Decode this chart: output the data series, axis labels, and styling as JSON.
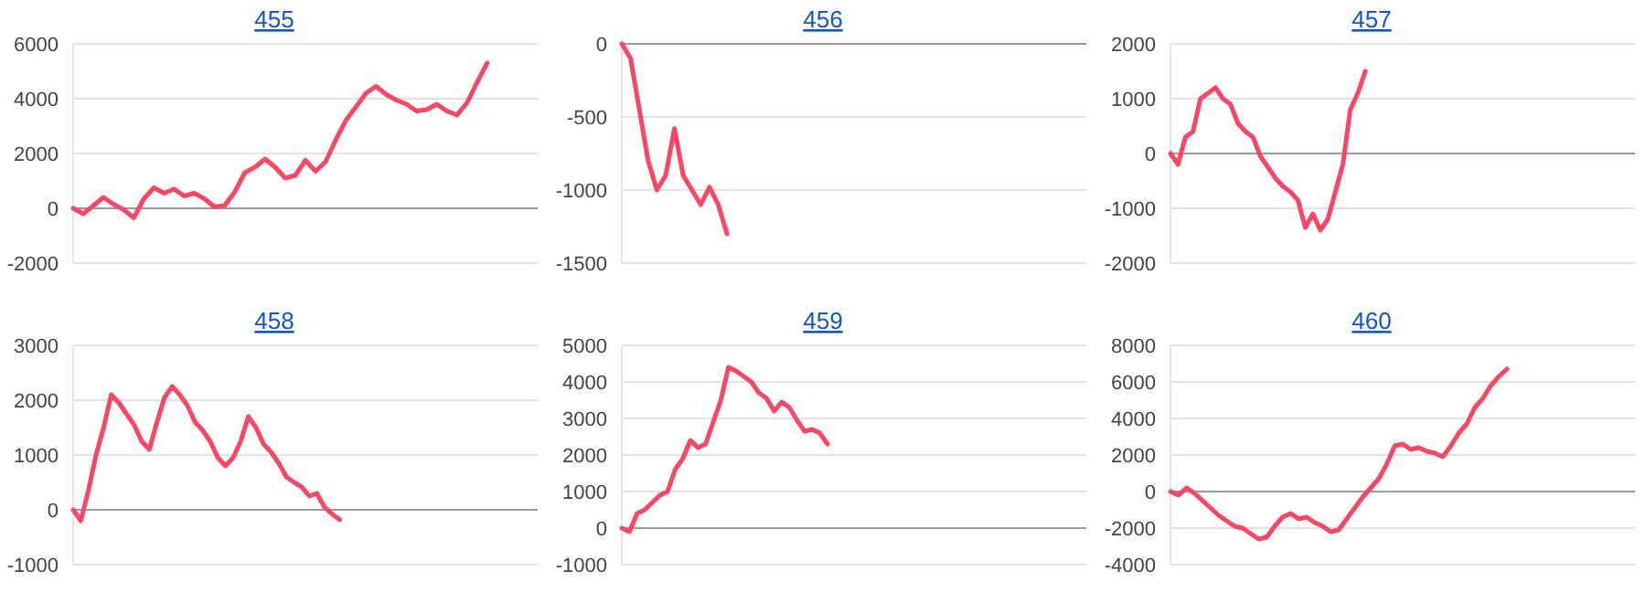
{
  "chart_data": [
    {
      "type": "line",
      "title": "455",
      "grid": "y",
      "tick_labels": "y",
      "ylim": [
        -2000,
        6000
      ],
      "yticks": [
        -2000,
        0,
        2000,
        4000,
        6000
      ],
      "categories": [
        null,
        null,
        null,
        null,
        null,
        null,
        null,
        null,
        null,
        null,
        null,
        null,
        null,
        null,
        null,
        null,
        null,
        null,
        null,
        null,
        null,
        null,
        null,
        null,
        null,
        null,
        null,
        null,
        null,
        null,
        null,
        null,
        null,
        null,
        null,
        null,
        null,
        null,
        null,
        null,
        null,
        null,
        null,
        null,
        null,
        null,
        null
      ],
      "series": [
        {
          "color": "#fa4564",
          "values": [
            0,
            -200,
            100,
            400,
            150,
            -50,
            -350,
            350,
            750,
            550,
            700,
            450,
            550,
            350,
            50,
            100,
            600,
            1300,
            1500,
            1800,
            1500,
            1100,
            1200,
            1750,
            1350,
            1700,
            2500,
            3200,
            3700,
            4200,
            4450,
            4150,
            3950,
            3800,
            3550,
            3600,
            3800,
            3550,
            3400,
            3850,
            4600,
            5300,
            null,
            null,
            null,
            null,
            null
          ]
        }
      ]
    },
    {
      "type": "line",
      "title": "456",
      "grid": "y",
      "tick_labels": "y",
      "ylim": [
        -1500,
        0
      ],
      "yticks": [
        -1500,
        -1000,
        -500,
        0
      ],
      "categories": [
        null,
        null,
        null,
        null,
        null,
        null,
        null,
        null,
        null,
        null,
        null,
        null,
        null,
        null,
        null,
        null,
        null,
        null,
        null,
        null,
        null,
        null,
        null,
        null,
        null,
        null,
        null,
        null,
        null,
        null,
        null,
        null,
        null,
        null,
        null,
        null,
        null,
        null,
        null,
        null,
        null,
        null,
        null,
        null,
        null,
        null,
        null,
        null,
        null,
        null,
        null,
        null,
        null,
        null
      ],
      "series": [
        {
          "color": "#fa4564",
          "values": [
            0,
            -100,
            -450,
            -800,
            -1000,
            -900,
            -580,
            -900,
            -1000,
            -1100,
            -980,
            -1100,
            -1300,
            null,
            null,
            null,
            null,
            null,
            null,
            null,
            null,
            null,
            null,
            null,
            null,
            null,
            null,
            null,
            null,
            null,
            null,
            null,
            null,
            null,
            null,
            null,
            null,
            null,
            null,
            null,
            null,
            null,
            null,
            null,
            null,
            null,
            null,
            null,
            null,
            null,
            null,
            null,
            null,
            null
          ]
        }
      ]
    },
    {
      "type": "line",
      "title": "457",
      "grid": "y",
      "tick_labels": "y",
      "ylim": [
        -2000,
        2000
      ],
      "yticks": [
        -2000,
        -1000,
        0,
        1000,
        2000
      ],
      "categories": [
        null,
        null,
        null,
        null,
        null,
        null,
        null,
        null,
        null,
        null,
        null,
        null,
        null,
        null,
        null,
        null,
        null,
        null,
        null,
        null,
        null,
        null,
        null,
        null,
        null,
        null,
        null,
        null,
        null,
        null,
        null,
        null,
        null,
        null,
        null,
        null,
        null,
        null,
        null,
        null,
        null,
        null,
        null,
        null,
        null,
        null,
        null,
        null,
        null,
        null,
        null,
        null,
        null,
        null,
        null,
        null,
        null,
        null,
        null,
        null,
        null,
        null,
        null
      ],
      "series": [
        {
          "color": "#fa4564",
          "values": [
            0,
            -200,
            300,
            400,
            1000,
            1100,
            1200,
            1000,
            900,
            550,
            400,
            300,
            -50,
            -250,
            -450,
            -600,
            -700,
            -850,
            -1350,
            -1100,
            -1400,
            -1200,
            -700,
            -200,
            800,
            1100,
            1500,
            null,
            null,
            null,
            null,
            null,
            null,
            null,
            null,
            null,
            null,
            null,
            null,
            null,
            null,
            null,
            null,
            null,
            null,
            null,
            null,
            null,
            null,
            null,
            null,
            null,
            null,
            null,
            null,
            null,
            null,
            null,
            null,
            null,
            null,
            null,
            null
          ]
        }
      ]
    },
    {
      "type": "line",
      "title": "458",
      "grid": "y",
      "tick_labels": "y",
      "ylim": [
        -1000,
        3000
      ],
      "yticks": [
        -1000,
        0,
        1000,
        2000,
        3000
      ],
      "categories": [
        null,
        null,
        null,
        null,
        null,
        null,
        null,
        null,
        null,
        null,
        null,
        null,
        null,
        null,
        null,
        null,
        null,
        null,
        null,
        null,
        null,
        null,
        null,
        null,
        null,
        null,
        null,
        null,
        null,
        null,
        null,
        null,
        null,
        null,
        null,
        null,
        null,
        null,
        null,
        null,
        null,
        null,
        null,
        null,
        null,
        null,
        null,
        null,
        null,
        null,
        null,
        null,
        null,
        null,
        null,
        null,
        null,
        null,
        null,
        null,
        null,
        null
      ],
      "series": [
        {
          "color": "#fa4564",
          "values": [
            0,
            -200,
            350,
            1000,
            1500,
            2100,
            1950,
            1750,
            1550,
            1250,
            1100,
            1600,
            2050,
            2250,
            2100,
            1900,
            1600,
            1450,
            1250,
            950,
            800,
            950,
            1250,
            1700,
            1500,
            1200,
            1050,
            850,
            600,
            500,
            420,
            250,
            300,
            50,
            -80,
            -180,
            null,
            null,
            null,
            null,
            null,
            null,
            null,
            null,
            null,
            null,
            null,
            null,
            null,
            null,
            null,
            null,
            null,
            null,
            null,
            null,
            null,
            null,
            null,
            null,
            null,
            null
          ]
        }
      ]
    },
    {
      "type": "line",
      "title": "459",
      "grid": "y",
      "tick_labels": "y",
      "ylim": [
        -1000,
        5000
      ],
      "yticks": [
        -1000,
        0,
        1000,
        2000,
        3000,
        4000,
        5000
      ],
      "categories": [
        null,
        null,
        null,
        null,
        null,
        null,
        null,
        null,
        null,
        null,
        null,
        null,
        null,
        null,
        null,
        null,
        null,
        null,
        null,
        null,
        null,
        null,
        null,
        null,
        null,
        null,
        null,
        null,
        null,
        null,
        null,
        null,
        null,
        null,
        null,
        null,
        null,
        null,
        null,
        null,
        null,
        null,
        null,
        null,
        null,
        null,
        null,
        null,
        null,
        null,
        null,
        null,
        null,
        null,
        null,
        null,
        null,
        null,
        null,
        null,
        null,
        null
      ],
      "series": [
        {
          "color": "#fa4564",
          "values": [
            0,
            -100,
            400,
            500,
            700,
            900,
            1000,
            1600,
            1900,
            2400,
            2200,
            2300,
            2900,
            3500,
            4400,
            4300,
            4150,
            4000,
            3700,
            3550,
            3200,
            3450,
            3300,
            2950,
            2650,
            2700,
            2600,
            2300,
            null,
            null,
            null,
            null,
            null,
            null,
            null,
            null,
            null,
            null,
            null,
            null,
            null,
            null,
            null,
            null,
            null,
            null,
            null,
            null,
            null,
            null,
            null,
            null,
            null,
            null,
            null,
            null,
            null,
            null,
            null,
            null,
            null,
            null
          ]
        }
      ]
    },
    {
      "type": "line",
      "title": "460",
      "grid": "y",
      "tick_labels": "y",
      "ylim": [
        -4000,
        8000
      ],
      "yticks": [
        -4000,
        -2000,
        0,
        2000,
        4000,
        6000,
        8000
      ],
      "categories": [
        null,
        null,
        null,
        null,
        null,
        null,
        null,
        null,
        null,
        null,
        null,
        null,
        null,
        null,
        null,
        null,
        null,
        null,
        null,
        null,
        null,
        null,
        null,
        null,
        null,
        null,
        null,
        null,
        null,
        null,
        null,
        null,
        null,
        null,
        null,
        null,
        null,
        null,
        null,
        null,
        null,
        null,
        null,
        null,
        null,
        null,
        null,
        null,
        null,
        null,
        null,
        null,
        null,
        null,
        null,
        null,
        null,
        null,
        null
      ],
      "series": [
        {
          "color": "#fa4564",
          "values": [
            0,
            -200,
            200,
            -100,
            -500,
            -900,
            -1300,
            -1600,
            -1900,
            -2000,
            -2300,
            -2600,
            -2500,
            -1900,
            -1400,
            -1200,
            -1500,
            -1400,
            -1700,
            -1900,
            -2200,
            -2100,
            -1500,
            -900,
            -300,
            200,
            700,
            1500,
            2500,
            2600,
            2300,
            2400,
            2200,
            2100,
            1900,
            2500,
            3200,
            3700,
            4600,
            5100,
            5800,
            6300,
            6700,
            null,
            null,
            null,
            null,
            null,
            null,
            null,
            null,
            null,
            null,
            null,
            null,
            null,
            null,
            null,
            null
          ]
        }
      ]
    }
  ]
}
